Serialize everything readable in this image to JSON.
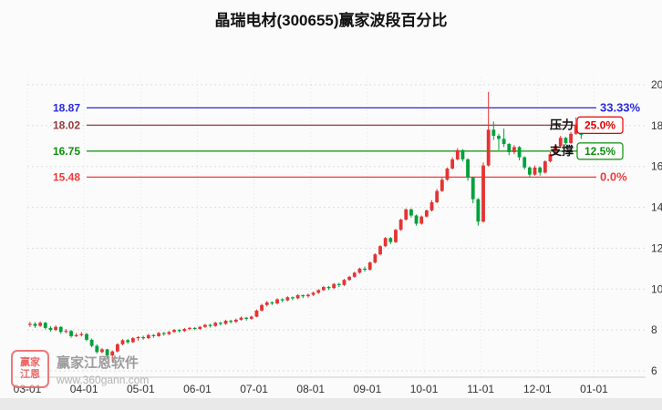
{
  "page": {
    "title": "晶瑞电材(300655)赢家波段百分比"
  },
  "watermark": {
    "logo_line1": "赢家",
    "logo_line2": "江恩",
    "name": "赢家江恩软件",
    "url": "www.360gann.com"
  },
  "chart_data": {
    "type": "candlestick",
    "title": "晶瑞电材(300655)赢家波段百分比",
    "grid": true,
    "colors": {
      "up": "#e53333",
      "down": "#00a13a",
      "grid": "#dcdcdc",
      "axis_text": "#333333"
    },
    "y_axis": {
      "min": 6,
      "max": 20,
      "ticks": [
        6,
        8,
        10,
        12,
        14,
        16,
        18,
        20
      ],
      "position": "right"
    },
    "x_axis": {
      "labels": [
        "03-01",
        "04-01",
        "05-01",
        "06-01",
        "07-01",
        "08-01",
        "09-01",
        "10-01",
        "11-01",
        "12-01",
        "01-01"
      ],
      "tick_indices": [
        0,
        11,
        22,
        33,
        44,
        55,
        66,
        77,
        88,
        99,
        110
      ],
      "slot_count": 120
    },
    "levels": [
      {
        "price": 18.87,
        "label": "18.87",
        "percent": "33.33%",
        "color": "#2929dd",
        "style": "text"
      },
      {
        "price": 18.02,
        "label": "18.02",
        "percent": "25.0%",
        "color": "#9a3b3b",
        "badge": "#e60000",
        "style": "box",
        "tag": "压力"
      },
      {
        "price": 16.75,
        "label": "16.75",
        "percent": "12.5%",
        "color": "#0b8f0b",
        "badge": "#0b8f0b",
        "style": "box",
        "tag": "支撑"
      },
      {
        "price": 15.48,
        "label": "15.48",
        "percent": "0.0%",
        "color": "#f03c3c",
        "style": "text"
      }
    ],
    "candles": [
      [
        8.25,
        8.4,
        8.15,
        8.3
      ],
      [
        8.3,
        8.38,
        8.1,
        8.2
      ],
      [
        8.2,
        8.42,
        8.15,
        8.35
      ],
      [
        8.35,
        8.4,
        8.02,
        8.1
      ],
      [
        8.1,
        8.18,
        7.92,
        8.0
      ],
      [
        8.0,
        8.22,
        7.95,
        8.15
      ],
      [
        8.15,
        8.18,
        7.82,
        7.9
      ],
      [
        7.9,
        8.05,
        7.85,
        7.95
      ],
      [
        7.95,
        8.0,
        7.62,
        7.7
      ],
      [
        7.7,
        7.85,
        7.65,
        7.75
      ],
      [
        7.75,
        7.9,
        7.68,
        7.8
      ],
      [
        7.8,
        7.85,
        7.45,
        7.52
      ],
      [
        7.52,
        7.58,
        7.15,
        7.22
      ],
      [
        7.22,
        7.3,
        6.85,
        6.92
      ],
      [
        6.92,
        7.12,
        6.86,
        7.05
      ],
      [
        7.05,
        7.08,
        6.6,
        6.75
      ],
      [
        6.75,
        7.0,
        6.45,
        6.95
      ],
      [
        6.95,
        7.35,
        6.9,
        7.3
      ],
      [
        7.3,
        7.55,
        7.25,
        7.5
      ],
      [
        7.5,
        7.56,
        7.32,
        7.4
      ],
      [
        7.4,
        7.65,
        7.36,
        7.6
      ],
      [
        7.6,
        7.7,
        7.48,
        7.65
      ],
      [
        7.65,
        7.72,
        7.52,
        7.6
      ],
      [
        7.6,
        7.8,
        7.56,
        7.75
      ],
      [
        7.75,
        7.8,
        7.62,
        7.7
      ],
      [
        7.7,
        7.9,
        7.66,
        7.85
      ],
      [
        7.85,
        7.9,
        7.72,
        7.8
      ],
      [
        7.8,
        7.95,
        7.74,
        7.9
      ],
      [
        7.9,
        8.05,
        7.86,
        8.0
      ],
      [
        8.0,
        8.04,
        7.88,
        7.95
      ],
      [
        7.95,
        8.1,
        7.9,
        8.05
      ],
      [
        8.05,
        8.15,
        7.98,
        8.1
      ],
      [
        8.1,
        8.14,
        7.99,
        8.05
      ],
      [
        8.05,
        8.2,
        8.0,
        8.15
      ],
      [
        8.15,
        8.3,
        8.1,
        8.25
      ],
      [
        8.25,
        8.3,
        8.12,
        8.2
      ],
      [
        8.2,
        8.4,
        8.15,
        8.35
      ],
      [
        8.35,
        8.4,
        8.22,
        8.3
      ],
      [
        8.3,
        8.5,
        8.25,
        8.45
      ],
      [
        8.45,
        8.5,
        8.32,
        8.4
      ],
      [
        8.4,
        8.56,
        8.34,
        8.5
      ],
      [
        8.5,
        8.66,
        8.45,
        8.6
      ],
      [
        8.6,
        8.64,
        8.46,
        8.55
      ],
      [
        8.55,
        8.7,
        8.5,
        8.65
      ],
      [
        8.65,
        9.0,
        8.62,
        8.95
      ],
      [
        8.95,
        9.28,
        8.9,
        9.22
      ],
      [
        9.22,
        9.42,
        9.15,
        9.35
      ],
      [
        9.35,
        9.4,
        9.22,
        9.3
      ],
      [
        9.3,
        9.55,
        9.25,
        9.5
      ],
      [
        9.5,
        9.55,
        9.36,
        9.45
      ],
      [
        9.45,
        9.65,
        9.4,
        9.6
      ],
      [
        9.6,
        9.64,
        9.46,
        9.55
      ],
      [
        9.55,
        9.75,
        9.5,
        9.7
      ],
      [
        9.7,
        9.74,
        9.56,
        9.65
      ],
      [
        9.65,
        9.78,
        9.58,
        9.72
      ],
      [
        9.72,
        9.88,
        9.66,
        9.82
      ],
      [
        9.82,
        10.0,
        9.76,
        9.95
      ],
      [
        9.95,
        10.15,
        9.9,
        10.1
      ],
      [
        10.1,
        10.15,
        9.96,
        10.05
      ],
      [
        10.05,
        10.3,
        10.0,
        10.25
      ],
      [
        10.25,
        10.3,
        10.1,
        10.2
      ],
      [
        10.2,
        10.5,
        10.15,
        10.45
      ],
      [
        10.45,
        10.65,
        10.4,
        10.6
      ],
      [
        10.6,
        10.85,
        10.55,
        10.8
      ],
      [
        10.8,
        11.05,
        10.75,
        11.0
      ],
      [
        11.0,
        11.1,
        10.85,
        10.95
      ],
      [
        10.95,
        11.35,
        10.9,
        11.3
      ],
      [
        11.3,
        11.75,
        11.25,
        11.7
      ],
      [
        11.7,
        12.15,
        11.65,
        12.1
      ],
      [
        12.1,
        12.55,
        12.05,
        12.5
      ],
      [
        12.5,
        12.55,
        12.2,
        12.3
      ],
      [
        12.3,
        12.95,
        12.25,
        12.9
      ],
      [
        12.9,
        13.45,
        12.85,
        13.4
      ],
      [
        13.4,
        13.95,
        13.35,
        13.9
      ],
      [
        13.9,
        13.95,
        13.5,
        13.6
      ],
      [
        13.6,
        13.65,
        13.1,
        13.2
      ],
      [
        13.2,
        13.6,
        13.15,
        13.55
      ],
      [
        13.55,
        13.9,
        13.5,
        13.85
      ],
      [
        13.85,
        14.35,
        13.8,
        14.25
      ],
      [
        14.25,
        14.9,
        14.2,
        14.8
      ],
      [
        14.8,
        15.45,
        14.75,
        15.35
      ],
      [
        15.35,
        15.95,
        15.3,
        15.9
      ],
      [
        15.9,
        16.45,
        15.85,
        16.35
      ],
      [
        16.35,
        16.9,
        16.3,
        16.8
      ],
      [
        16.8,
        16.85,
        16.25,
        16.35
      ],
      [
        16.35,
        16.4,
        15.3,
        15.45
      ],
      [
        15.45,
        15.5,
        14.2,
        14.4
      ],
      [
        14.4,
        14.45,
        13.1,
        13.3
      ],
      [
        13.3,
        16.2,
        13.25,
        16.05
      ],
      [
        16.05,
        19.65,
        16.0,
        17.8
      ],
      [
        17.8,
        18.2,
        17.3,
        17.5
      ],
      [
        17.5,
        17.6,
        16.8,
        17.35
      ],
      [
        17.35,
        17.85,
        16.95,
        17.1
      ],
      [
        17.1,
        17.15,
        16.55,
        16.7
      ],
      [
        16.7,
        17.05,
        16.6,
        16.95
      ],
      [
        16.95,
        17.0,
        16.3,
        16.45
      ],
      [
        16.45,
        16.5,
        15.85,
        15.95
      ],
      [
        15.95,
        16.0,
        15.5,
        15.6
      ],
      [
        15.6,
        16.05,
        15.55,
        15.95
      ],
      [
        15.95,
        16.0,
        15.55,
        15.7
      ],
      [
        15.7,
        16.3,
        15.65,
        16.25
      ],
      [
        16.25,
        16.7,
        16.2,
        16.6
      ],
      [
        16.6,
        17.1,
        16.55,
        17.0
      ],
      [
        17.0,
        17.5,
        16.95,
        17.4
      ],
      [
        17.4,
        17.45,
        17.05,
        17.15
      ],
      [
        17.15,
        17.7,
        17.1,
        17.6
      ],
      [
        17.6,
        18.4,
        17.55,
        18.05
      ],
      [
        18.05,
        18.1,
        17.35,
        17.55
      ]
    ]
  }
}
